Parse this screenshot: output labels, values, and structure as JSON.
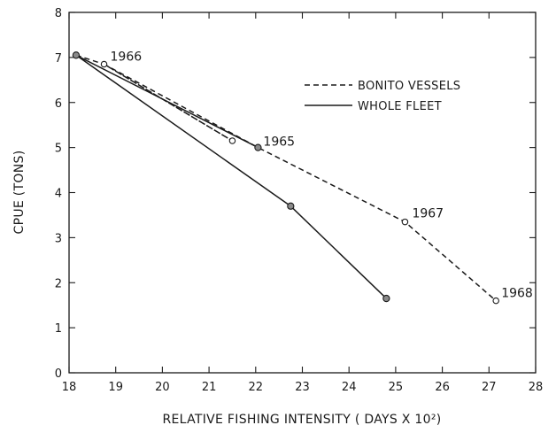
{
  "chart_data": {
    "type": "line",
    "title": "",
    "xlabel": "RELATIVE FISHING INTENSITY ( DAYS X 10²)",
    "ylabel": "CPUE (TONS)",
    "xlim": [
      18,
      28
    ],
    "ylim": [
      0,
      8
    ],
    "x_ticks": [
      "18",
      "19",
      "20",
      "21",
      "22",
      "23",
      "24",
      "25",
      "26",
      "27",
      "28"
    ],
    "y_ticks": [
      "0",
      "1",
      "2",
      "3",
      "4",
      "5",
      "6",
      "7",
      "8"
    ],
    "grid": false,
    "legend_position": "upper-right",
    "series": [
      {
        "name": "BONITO VESSELS",
        "style": "dashed",
        "marker": "open-circle",
        "color": "#1a1a1a",
        "points": [
          {
            "x": 18.15,
            "y": 7.05
          },
          {
            "x": 18.75,
            "y": 6.85
          },
          {
            "x": 21.5,
            "y": 5.15
          },
          {
            "x": 18.75,
            "y": 6.85
          },
          {
            "x": 22.05,
            "y": 5.0
          },
          {
            "x": 25.2,
            "y": 3.35
          },
          {
            "x": 27.15,
            "y": 1.6
          }
        ]
      },
      {
        "name": "WHOLE FLEET",
        "style": "solid",
        "marker": "filled-circle",
        "color": "#1a1a1a",
        "points": [
          {
            "x": 18.15,
            "y": 7.05
          },
          {
            "x": 22.05,
            "y": 5.0
          },
          {
            "x": 18.15,
            "y": 7.05
          },
          {
            "x": 22.75,
            "y": 3.7
          },
          {
            "x": 24.8,
            "y": 1.65
          }
        ]
      }
    ],
    "annotations": [
      {
        "text": "1966",
        "x": 18.75,
        "y": 6.85
      },
      {
        "text": "1965",
        "x": 22.05,
        "y": 5.0
      },
      {
        "text": "1967",
        "x": 25.2,
        "y": 3.35
      },
      {
        "text": "1968",
        "x": 27.15,
        "y": 1.6
      }
    ]
  }
}
